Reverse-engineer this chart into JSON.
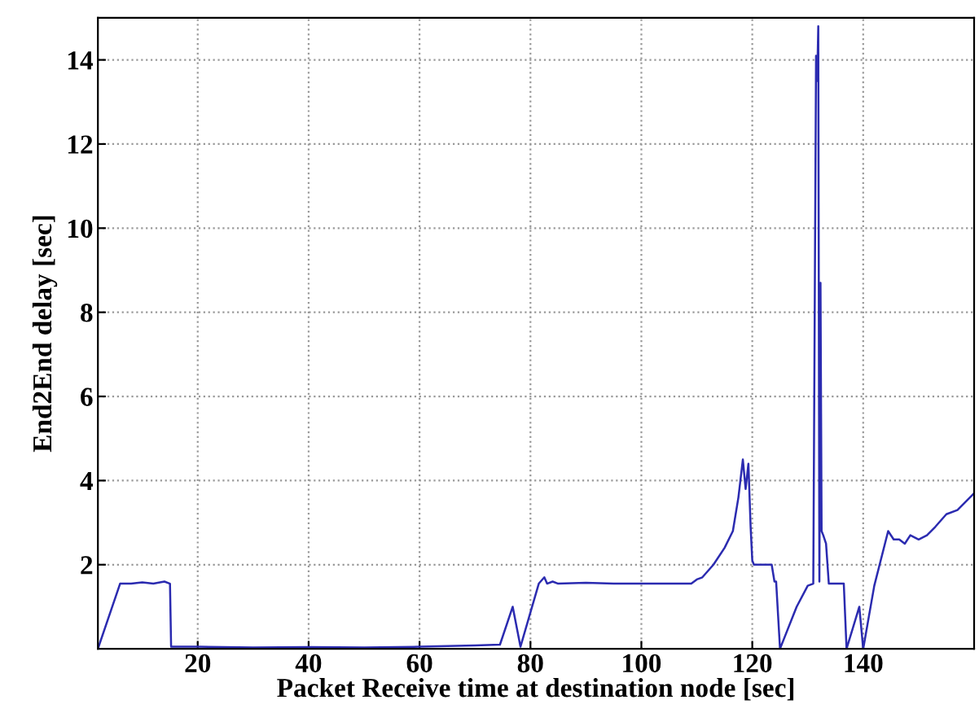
{
  "chart_data": {
    "type": "line",
    "xlabel": "Packet Receive time at destination node [sec]",
    "ylabel": "End2End delay [sec]",
    "xlim": [
      2,
      160
    ],
    "ylim": [
      0,
      15
    ],
    "xticks": [
      20,
      40,
      60,
      80,
      100,
      120,
      140
    ],
    "yticks": [
      2,
      4,
      6,
      8,
      10,
      12,
      14
    ],
    "grid": true,
    "series": [
      {
        "color": "#2b2bb0",
        "x": [
          2,
          6,
          8,
          10,
          12,
          14,
          15,
          15.2,
          20,
          30,
          40,
          50,
          60,
          70,
          74.5,
          76.8,
          78.2,
          81.5,
          82.5,
          83,
          84,
          85,
          90,
          95,
          100,
          105,
          109,
          110,
          111,
          113,
          115,
          116.5,
          117.5,
          118.3,
          118.8,
          119.3,
          119.7,
          120,
          120.3,
          123.5,
          124,
          124.3,
          125,
          128,
          130,
          131,
          131.5,
          131.7,
          131.9,
          132.1,
          132.3,
          132.5,
          132.8,
          133.3,
          133.8,
          134,
          136.5,
          137,
          139.3,
          140,
          142,
          144.5,
          145.5,
          146.5,
          147.5,
          148.5,
          150,
          151.5,
          153,
          155,
          157,
          160
        ],
        "values": [
          0,
          1.55,
          1.55,
          1.58,
          1.55,
          1.6,
          1.55,
          0.05,
          0.05,
          0.03,
          0.04,
          0.03,
          0.05,
          0.08,
          0.1,
          1.0,
          0.05,
          1.55,
          1.7,
          1.55,
          1.6,
          1.55,
          1.57,
          1.55,
          1.55,
          1.55,
          1.55,
          1.65,
          1.7,
          2.0,
          2.4,
          2.8,
          3.6,
          4.5,
          3.8,
          4.4,
          2.9,
          2.1,
          2.0,
          2.0,
          1.6,
          1.6,
          0,
          1.0,
          1.5,
          1.55,
          14.1,
          13.5,
          14.8,
          1.6,
          8.7,
          2.8,
          2.7,
          2.5,
          1.55,
          1.55,
          1.55,
          0,
          1.0,
          0,
          1.5,
          2.8,
          2.6,
          2.6,
          2.5,
          2.7,
          2.6,
          2.7,
          2.9,
          3.2,
          3.3,
          3.7
        ]
      }
    ]
  }
}
